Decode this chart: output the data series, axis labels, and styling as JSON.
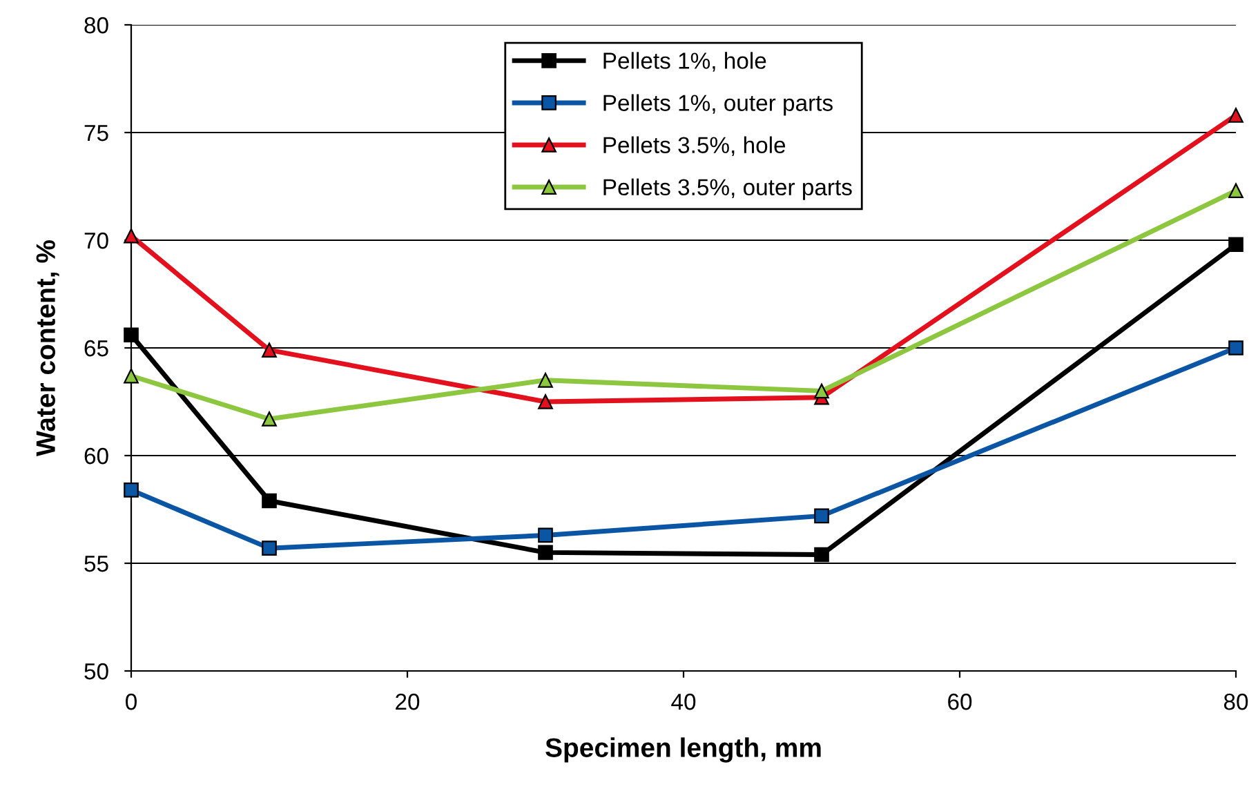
{
  "chart_data": {
    "type": "line",
    "xlabel": "Specimen length, mm",
    "ylabel": "Water content, %",
    "x": [
      0,
      10,
      30,
      50,
      80
    ],
    "series": [
      {
        "name": "Pellets 1%, hole",
        "color": "#000000",
        "marker": "square",
        "values": [
          65.6,
          57.9,
          55.5,
          55.4,
          69.8
        ]
      },
      {
        "name": "Pellets 1%, outer parts",
        "color": "#0b56a4",
        "marker": "square",
        "values": [
          58.4,
          55.7,
          56.3,
          57.2,
          65.0
        ]
      },
      {
        "name": "Pellets 3.5%, hole",
        "color": "#e3101e",
        "marker": "triangle",
        "values": [
          70.2,
          64.9,
          62.5,
          62.7,
          75.8
        ]
      },
      {
        "name": "Pellets 3.5%, outer parts",
        "color": "#8dc63f",
        "marker": "triangle",
        "values": [
          63.7,
          61.7,
          63.5,
          63.0,
          72.3
        ]
      }
    ],
    "xlim": [
      0,
      80
    ],
    "xticks": [
      0,
      20,
      40,
      60,
      80
    ],
    "ylim": [
      50,
      80
    ],
    "yticks": [
      50,
      55,
      60,
      65,
      70,
      75,
      80
    ],
    "grid": "y",
    "legend": "top"
  }
}
